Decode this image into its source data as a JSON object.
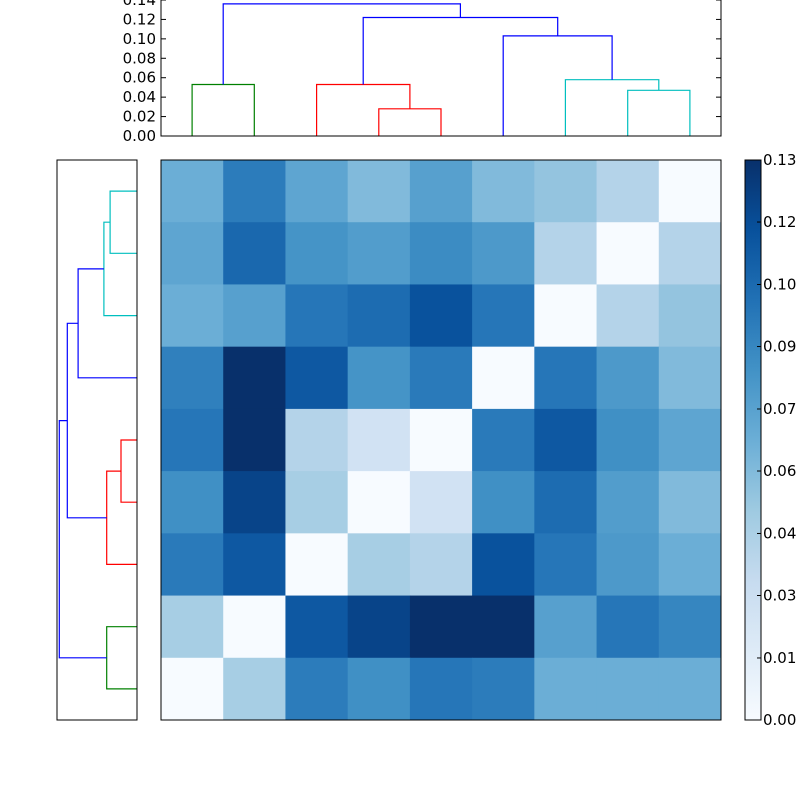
{
  "chart_data": [
    {
      "type": "dendrogram",
      "orientation": "top",
      "ylim": [
        0,
        0.14
      ],
      "yticks": [
        "0.00",
        "0.02",
        "0.04",
        "0.06",
        "0.08",
        "0.10",
        "0.12",
        "0.14"
      ],
      "links": [
        {
          "x": [
            0.5,
            0.5,
            1.5,
            1.5
          ],
          "y": [
            0,
            0.053,
            0.053,
            0
          ],
          "color": "#008000"
        },
        {
          "x": [
            3.5,
            3.5,
            4.5,
            4.5
          ],
          "y": [
            0,
            0.028,
            0.028,
            0
          ],
          "color": "#ff0000"
        },
        {
          "x": [
            2.5,
            2.5,
            4.0,
            4.0
          ],
          "y": [
            0,
            0.053,
            0.053,
            0.028
          ],
          "color": "#ff0000"
        },
        {
          "x": [
            7.5,
            7.5,
            8.5,
            8.5
          ],
          "y": [
            0,
            0.047,
            0.047,
            0
          ],
          "color": "#00bfbf"
        },
        {
          "x": [
            6.5,
            6.5,
            8.0,
            8.0
          ],
          "y": [
            0,
            0.058,
            0.058,
            0.047
          ],
          "color": "#00bfbf"
        },
        {
          "x": [
            5.5,
            5.5,
            7.25,
            7.25
          ],
          "y": [
            0,
            0.103,
            0.103,
            0.058
          ],
          "color": "#0000ff"
        },
        {
          "x": [
            3.25,
            3.25,
            6.375,
            6.375
          ],
          "y": [
            0.053,
            0.122,
            0.122,
            0.103
          ],
          "color": "#0000ff"
        },
        {
          "x": [
            1.0,
            1.0,
            4.8125,
            4.8125
          ],
          "y": [
            0.053,
            0.136,
            0.136,
            0.122
          ],
          "color": "#0000ff"
        }
      ]
    },
    {
      "type": "dendrogram",
      "orientation": "left",
      "xlim": [
        0,
        0.14
      ],
      "links": [
        {
          "x": [
            0.5,
            0.5,
            1.5,
            1.5
          ],
          "y": [
            0,
            0.053,
            0.053,
            0
          ],
          "color": "#008000"
        },
        {
          "x": [
            3.5,
            3.5,
            4.5,
            4.5
          ],
          "y": [
            0,
            0.028,
            0.028,
            0
          ],
          "color": "#ff0000"
        },
        {
          "x": [
            2.5,
            2.5,
            4.0,
            4.0
          ],
          "y": [
            0,
            0.053,
            0.053,
            0.028
          ],
          "color": "#ff0000"
        },
        {
          "x": [
            7.5,
            7.5,
            8.5,
            8.5
          ],
          "y": [
            0,
            0.047,
            0.047,
            0
          ],
          "color": "#00bfbf"
        },
        {
          "x": [
            6.5,
            6.5,
            8.0,
            8.0
          ],
          "y": [
            0,
            0.058,
            0.058,
            0.047
          ],
          "color": "#00bfbf"
        },
        {
          "x": [
            5.5,
            5.5,
            7.25,
            7.25
          ],
          "y": [
            0,
            0.103,
            0.103,
            0.058
          ],
          "color": "#0000ff"
        },
        {
          "x": [
            3.25,
            3.25,
            6.375,
            6.375
          ],
          "y": [
            0.053,
            0.122,
            0.122,
            0.103
          ],
          "color": "#0000ff"
        },
        {
          "x": [
            1.0,
            1.0,
            4.8125,
            4.8125
          ],
          "y": [
            0.053,
            0.136,
            0.136,
            0.122
          ],
          "color": "#0000ff"
        }
      ]
    },
    {
      "type": "heatmap",
      "colormap": "Blues",
      "vmin": 0.0,
      "vmax": 0.13,
      "rows": 9,
      "cols": 9,
      "values": [
        [
          0.065,
          0.092,
          0.07,
          0.058,
          0.073,
          0.058,
          0.052,
          0.04,
          0.0
        ],
        [
          0.07,
          0.102,
          0.08,
          0.075,
          0.084,
          0.077,
          0.04,
          0.0,
          0.04
        ],
        [
          0.065,
          0.073,
          0.095,
          0.1,
          0.113,
          0.095,
          0.0,
          0.04,
          0.052
        ],
        [
          0.09,
          0.13,
          0.11,
          0.08,
          0.093,
          0.0,
          0.095,
          0.077,
          0.058
        ],
        [
          0.095,
          0.13,
          0.04,
          0.025,
          0.0,
          0.093,
          0.11,
          0.082,
          0.07
        ],
        [
          0.082,
          0.12,
          0.045,
          0.0,
          0.025,
          0.082,
          0.1,
          0.075,
          0.058
        ],
        [
          0.093,
          0.11,
          0.0,
          0.045,
          0.04,
          0.113,
          0.095,
          0.077,
          0.065
        ],
        [
          0.045,
          0.0,
          0.11,
          0.12,
          0.13,
          0.13,
          0.073,
          0.095,
          0.087
        ],
        [
          0.0,
          0.045,
          0.092,
          0.082,
          0.095,
          0.092,
          0.065,
          0.065,
          0.065
        ]
      ]
    },
    {
      "type": "colorbar",
      "colormap": "Blues",
      "vmin": 0.0,
      "vmax": 0.13,
      "ticks": [
        {
          "value": 0.0,
          "label": "0.00"
        },
        {
          "value": 0.0144,
          "label": "0.01"
        },
        {
          "value": 0.0289,
          "label": "0.03"
        },
        {
          "value": 0.0433,
          "label": "0.04"
        },
        {
          "value": 0.0578,
          "label": "0.06"
        },
        {
          "value": 0.0722,
          "label": "0.07"
        },
        {
          "value": 0.0867,
          "label": "0.09"
        },
        {
          "value": 0.1011,
          "label": "0.10"
        },
        {
          "value": 0.1156,
          "label": "0.12"
        },
        {
          "value": 0.13,
          "label": "0.13"
        }
      ]
    }
  ]
}
